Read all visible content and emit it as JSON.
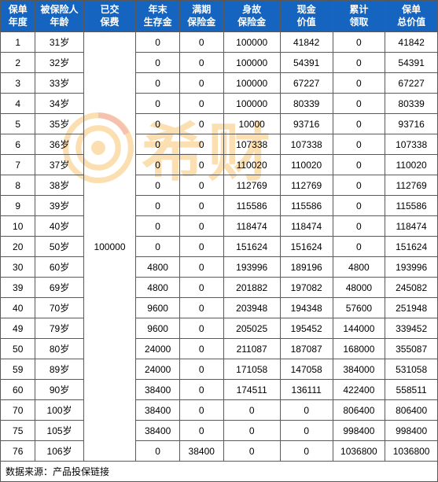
{
  "table": {
    "header_bg": "#1565c0",
    "header_color": "#ffffff",
    "border_color": "#595959",
    "cell_bg": "#ffffff",
    "font_size": 12,
    "columns": [
      {
        "key": "year",
        "label": "保单\n年度",
        "width": "8%"
      },
      {
        "key": "age",
        "label": "被保险人\n年龄",
        "width": "11%"
      },
      {
        "key": "premium",
        "label": "已交\n保费",
        "width": "12%"
      },
      {
        "key": "survive",
        "label": "年末\n生存金",
        "width": "10%"
      },
      {
        "key": "maturity",
        "label": "满期\n保险金",
        "width": "10%"
      },
      {
        "key": "death",
        "label": "身故\n保险金",
        "width": "13%"
      },
      {
        "key": "cash",
        "label": "现金\n价值",
        "width": "12%"
      },
      {
        "key": "cum",
        "label": "累计\n领取",
        "width": "12%"
      },
      {
        "key": "total",
        "label": "保单\n总价值",
        "width": "12%"
      }
    ],
    "premium_merged": "100000",
    "rows": [
      {
        "year": "1",
        "age": "31岁",
        "survive": "0",
        "maturity": "0",
        "death": "100000",
        "cash": "41842",
        "cum": "0",
        "total": "41842"
      },
      {
        "year": "2",
        "age": "32岁",
        "survive": "0",
        "maturity": "0",
        "death": "100000",
        "cash": "54391",
        "cum": "0",
        "total": "54391"
      },
      {
        "year": "3",
        "age": "33岁",
        "survive": "0",
        "maturity": "0",
        "death": "100000",
        "cash": "67227",
        "cum": "0",
        "total": "67227"
      },
      {
        "year": "4",
        "age": "34岁",
        "survive": "0",
        "maturity": "0",
        "death": "100000",
        "cash": "80339",
        "cum": "0",
        "total": "80339"
      },
      {
        "year": "5",
        "age": "35岁",
        "survive": "0",
        "maturity": "0",
        "death": "10000",
        "cash": "93716",
        "cum": "0",
        "total": "93716"
      },
      {
        "year": "6",
        "age": "36岁",
        "survive": "0",
        "maturity": "0",
        "death": "107338",
        "cash": "107338",
        "cum": "0",
        "total": "107338"
      },
      {
        "year": "7",
        "age": "37岁",
        "survive": "0",
        "maturity": "0",
        "death": "110020",
        "cash": "110020",
        "cum": "0",
        "total": "110020"
      },
      {
        "year": "8",
        "age": "38岁",
        "survive": "0",
        "maturity": "0",
        "death": "112769",
        "cash": "112769",
        "cum": "0",
        "total": "112769"
      },
      {
        "year": "9",
        "age": "39岁",
        "survive": "0",
        "maturity": "0",
        "death": "115586",
        "cash": "115586",
        "cum": "0",
        "total": "115586"
      },
      {
        "year": "10",
        "age": "40岁",
        "survive": "0",
        "maturity": "0",
        "death": "118474",
        "cash": "118474",
        "cum": "0",
        "total": "118474"
      },
      {
        "year": "20",
        "age": "50岁",
        "survive": "0",
        "maturity": "0",
        "death": "151624",
        "cash": "151624",
        "cum": "0",
        "total": "151624"
      },
      {
        "year": "30",
        "age": "60岁",
        "survive": "4800",
        "maturity": "0",
        "death": "193996",
        "cash": "189196",
        "cum": "4800",
        "total": "193996"
      },
      {
        "year": "39",
        "age": "69岁",
        "survive": "4800",
        "maturity": "0",
        "death": "201882",
        "cash": "197082",
        "cum": "48000",
        "total": "245082"
      },
      {
        "year": "40",
        "age": "70岁",
        "survive": "9600",
        "maturity": "0",
        "death": "203948",
        "cash": "194348",
        "cum": "57600",
        "total": "251948"
      },
      {
        "year": "49",
        "age": "79岁",
        "survive": "9600",
        "maturity": "0",
        "death": "205025",
        "cash": "195452",
        "cum": "144000",
        "total": "339452"
      },
      {
        "year": "50",
        "age": "80岁",
        "survive": "24000",
        "maturity": "0",
        "death": "211087",
        "cash": "187087",
        "cum": "168000",
        "total": "355087"
      },
      {
        "year": "59",
        "age": "89岁",
        "survive": "24000",
        "maturity": "0",
        "death": "171058",
        "cash": "147058",
        "cum": "384000",
        "total": "531058"
      },
      {
        "year": "60",
        "age": "90岁",
        "survive": "38400",
        "maturity": "0",
        "death": "174511",
        "cash": "136111",
        "cum": "422400",
        "total": "558511"
      },
      {
        "year": "70",
        "age": "100岁",
        "survive": "38400",
        "maturity": "0",
        "death": "0",
        "cash": "0",
        "cum": "806400",
        "total": "806400"
      },
      {
        "year": "75",
        "age": "105岁",
        "survive": "38400",
        "maturity": "0",
        "death": "0",
        "cash": "0",
        "cum": "998400",
        "total": "998400"
      },
      {
        "year": "76",
        "age": "106岁",
        "survive": "0",
        "maturity": "38400",
        "death": "0",
        "cash": "0",
        "cum": "1036800",
        "total": "1036800"
      }
    ],
    "footer": "数据来源：产品投保链接"
  },
  "watermark": {
    "text": "希财",
    "color": "#f5a623",
    "opacity": 0.35
  }
}
